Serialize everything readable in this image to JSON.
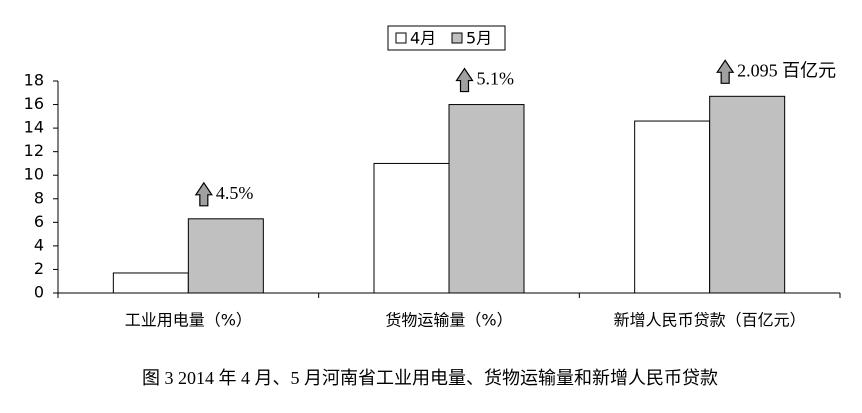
{
  "chart_data": {
    "type": "bar",
    "caption": "图 3 2014 年 4 月、5 月河南省工业用电量、货物运输量和新增人民币贷款",
    "categories": [
      "工业用电量（%）",
      "货物运输量（%）",
      "新增人民币贷款（百亿元）"
    ],
    "series": [
      {
        "name": "4月",
        "color": "#ffffff",
        "values": [
          1.7,
          11.0,
          14.6
        ]
      },
      {
        "name": "5月",
        "color": "#c0c0c0",
        "values": [
          6.3,
          16.0,
          16.7
        ]
      }
    ],
    "annotations": [
      "4.5%",
      "5.1%",
      "2.095 百亿元"
    ],
    "ylim": [
      0,
      18
    ],
    "yticks": [
      0,
      2,
      4,
      6,
      8,
      10,
      12,
      14,
      16,
      18
    ],
    "grid": false
  }
}
